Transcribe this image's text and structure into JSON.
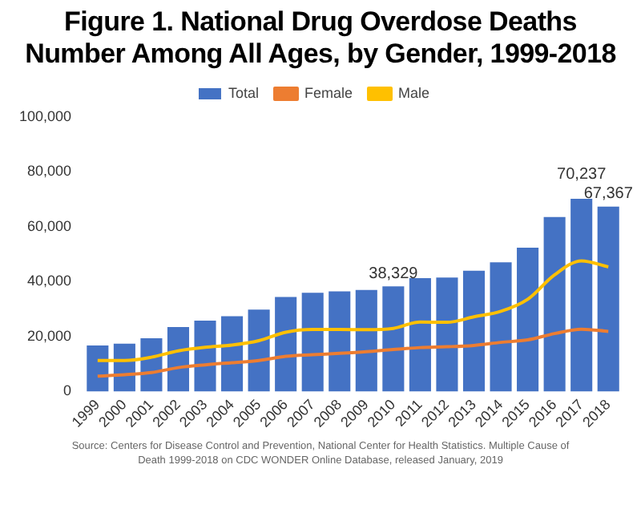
{
  "chart_data": {
    "type": "bar",
    "title": "Figure 1. National Drug Overdose Deaths Number Among All Ages, by Gender, 1999-2018",
    "categories": [
      "1999",
      "2000",
      "2001",
      "2002",
      "2003",
      "2004",
      "2005",
      "2006",
      "2007",
      "2008",
      "2009",
      "2010",
      "2011",
      "2012",
      "2013",
      "2014",
      "2015",
      "2016",
      "2017",
      "2018"
    ],
    "series": [
      {
        "name": "Total",
        "color": "#4472c4",
        "values": [
          16800,
          17400,
          19400,
          23500,
          25800,
          27400,
          29800,
          34400,
          36000,
          36500,
          37000,
          38329,
          41300,
          41500,
          44000,
          47100,
          52400,
          63600,
          70237,
          67367
        ],
        "value_labels": [
          null,
          null,
          null,
          null,
          null,
          null,
          null,
          null,
          null,
          null,
          null,
          "38,329",
          null,
          null,
          null,
          null,
          null,
          null,
          "70,237",
          "67,367"
        ]
      },
      {
        "name": "Female",
        "type": "line",
        "color": "#ed7d31",
        "values": [
          5600,
          6100,
          6900,
          8700,
          9700,
          10500,
          11300,
          12800,
          13400,
          13900,
          14500,
          15300,
          16000,
          16300,
          16800,
          17900,
          18800,
          21100,
          22700,
          21900
        ]
      },
      {
        "name": "Male",
        "type": "line",
        "color": "#ffc000",
        "values": [
          11300,
          11300,
          12500,
          14800,
          16100,
          16900,
          18500,
          21600,
          22600,
          22600,
          22500,
          23000,
          25300,
          25200,
          27200,
          29200,
          33600,
          42500,
          47600,
          45400
        ]
      }
    ],
    "ylim": [
      0,
      100000
    ],
    "yticks": [
      {
        "value": 0,
        "label": "0"
      },
      {
        "value": 20000,
        "label": "20,000"
      },
      {
        "value": 40000,
        "label": "40,000"
      },
      {
        "value": 60000,
        "label": "60,000"
      },
      {
        "value": 80000,
        "label": "80,000"
      },
      {
        "value": 100000,
        "label": "100,000"
      }
    ],
    "grid": false,
    "legend": "top",
    "marker": "none",
    "annotations": [
      "Source: Centers for Disease Control and Prevention, National Center for Health Statistics. Multiple Cause of Death 1999-2018 on CDC WONDER Online Database, released January, 2019"
    ]
  }
}
